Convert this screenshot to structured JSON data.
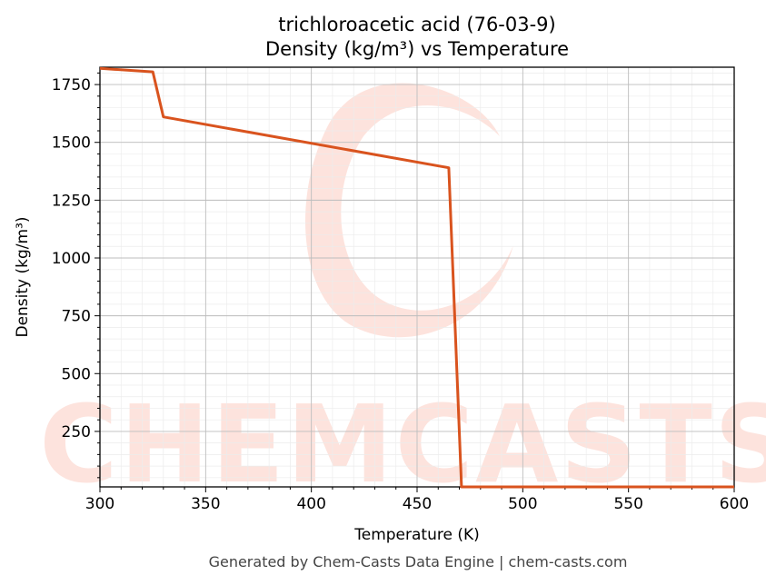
{
  "chart_data": {
    "type": "line",
    "title": "trichloroacetic acid (76-03-9)",
    "subtitle": "Density (kg/m³) vs Temperature",
    "xlabel": "Temperature (K)",
    "ylabel": "Density (kg/m³)",
    "xlim": [
      300,
      600
    ],
    "ylim": [
      10,
      1825
    ],
    "x_ticks": [
      300,
      350,
      400,
      450,
      500,
      550,
      600
    ],
    "y_ticks": [
      250,
      500,
      750,
      1000,
      1250,
      1500,
      1750
    ],
    "grid": true,
    "legend": "none",
    "series": [
      {
        "color": "#d9531e",
        "points": [
          {
            "x": 300,
            "y": 1820
          },
          {
            "x": 325,
            "y": 1805
          },
          {
            "x": 330,
            "y": 1610
          },
          {
            "x": 465,
            "y": 1390
          },
          {
            "x": 471,
            "y": 10
          },
          {
            "x": 600,
            "y": 10
          }
        ]
      }
    ]
  },
  "watermark": {
    "text": "CHEMCASTS",
    "color": "#fde3dd"
  },
  "footer": "Generated by Chem-Casts Data Engine | chem-casts.com"
}
